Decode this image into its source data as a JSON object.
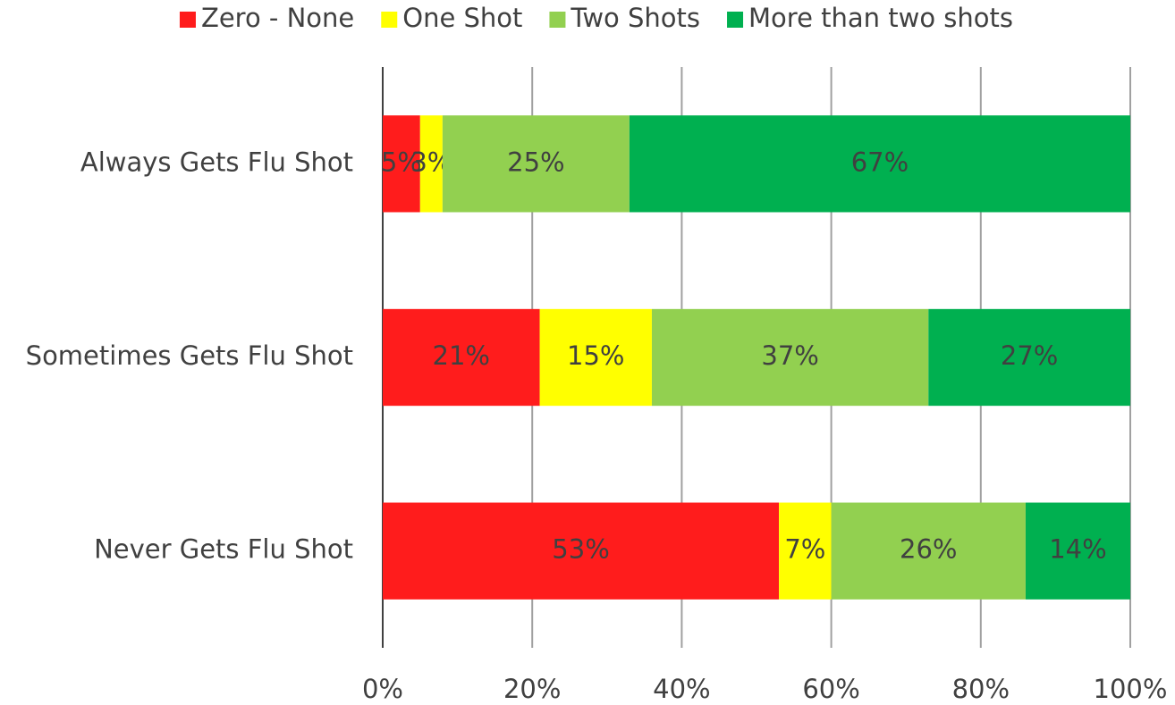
{
  "chart_data": {
    "type": "bar",
    "orientation": "horizontal",
    "stacked": true,
    "categories": [
      "Always Gets Flu Shot",
      "Sometimes Gets Flu Shot",
      "Never Gets Flu Shot"
    ],
    "series": [
      {
        "name": "Zero - None",
        "color": "#ff1c1c",
        "values": [
          5,
          21,
          53
        ],
        "value_labels": [
          "5%",
          "21%",
          "53%"
        ]
      },
      {
        "name": "One Shot",
        "color": "#ffff00",
        "values": [
          3,
          15,
          7
        ],
        "value_labels": [
          "3%",
          "15%",
          "7%"
        ]
      },
      {
        "name": "Two Shots",
        "color": "#92d050",
        "values": [
          25,
          37,
          26
        ],
        "value_labels": [
          "25%",
          "37%",
          "26%"
        ]
      },
      {
        "name": "More than two shots",
        "color": "#00b050",
        "values": [
          67,
          27,
          14
        ],
        "value_labels": [
          "67%",
          "27%",
          "14%"
        ]
      }
    ],
    "xlim": [
      0,
      100
    ],
    "xticks": [
      {
        "value": 0,
        "label": "0%"
      },
      {
        "value": 20,
        "label": "20%"
      },
      {
        "value": 40,
        "label": "40%"
      },
      {
        "value": 60,
        "label": "60%"
      },
      {
        "value": 80,
        "label": "80%"
      },
      {
        "value": 100,
        "label": "100%"
      }
    ],
    "grid": true,
    "legend": "top"
  }
}
